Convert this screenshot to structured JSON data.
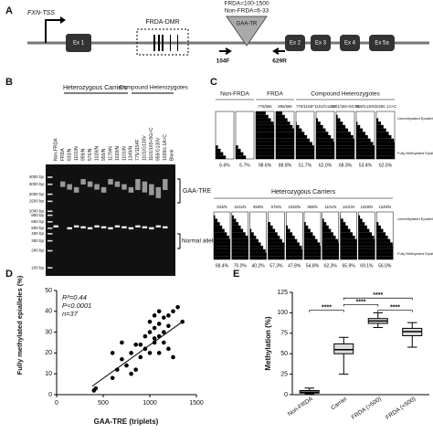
{
  "panel_a": {
    "letter": "A",
    "tss": "FXN-TSS",
    "repeat_frda": "FRDA=100-1500",
    "repeat_non_frda": "Non-FRDA=6-33",
    "repeat": "GAA-TR",
    "dmr": "FRDA-DMR",
    "exons": [
      "Ex 1",
      "Ex 2",
      "Ex 3",
      "Ex 4",
      "Ex 5a"
    ],
    "primers": [
      "104F",
      "629R"
    ]
  },
  "panel_b": {
    "letter": "B",
    "lanes": [
      "Non-FRDA",
      "FRDA",
      "833/N",
      "1101/N",
      "959/N",
      "576/N",
      "1028/N",
      "959/N",
      "1179/N",
      "1028/N",
      "1101/N",
      "1349/N",
      "775/1154F",
      "1101/G130V",
      "1101/165+5G>C",
      "959/G130V",
      "1028/c.1A>C",
      "Blank"
    ],
    "groups": [
      "Heterozygous Carriers",
      "Compound Heterozygotes"
    ],
    "markers": [
      "4000 bp",
      "3000 bp",
      "2000 bp",
      "1500 bp",
      "1000 bp",
      "850 bp",
      "650 bp",
      "500 bp",
      "400 bp",
      "300 bp",
      "200 bp",
      "100 bp"
    ],
    "bands": [
      "GAA-TRE",
      "Normal alleles"
    ]
  },
  "panel_c": {
    "letter": "C",
    "top_groups": [
      "Non-FRDA",
      "FRDA",
      "Compound Heterozygotes"
    ],
    "top_labels": [
      null,
      null,
      "775/566",
      "895/566",
      "775/1154F",
      "1101/G130V",
      "1101/165+5G>C",
      "959/G130V",
      "1028/c.1A>C"
    ],
    "top_percents": [
      "6.6%",
      "6.7%",
      "98.6%",
      "88.8%",
      "51.7%",
      "62.0%",
      "68.3%",
      "53.4%",
      "62.5%"
    ],
    "bottom_group": "Heterozygous Carriers",
    "bottom_labels": [
      "833/N",
      "1101/N",
      "959/N",
      "576/N",
      "1028/N",
      "959/N",
      "1101/N",
      "1101/N",
      "1028/N",
      "1349/N"
    ],
    "bottom_percents": [
      "68.4%",
      "70.0%",
      "40.2%",
      "57.3%",
      "47.8%",
      "54.8%",
      "62.3%",
      "65.9%",
      "69.1%",
      "56.0%"
    ],
    "legend": [
      "Unmethylated Epialleles",
      "Fully Methylated Epialleles"
    ]
  },
  "chart_data": [
    {
      "type": "scatter",
      "letter": "D",
      "x_label": "GAA-TRE (triplets)",
      "y_label": "Fully methylated epialleles (%)",
      "annotations": [
        "R²=0.44",
        "P<0.0001",
        "n=37"
      ],
      "x": [
        400,
        420,
        600,
        650,
        700,
        750,
        800,
        800,
        850,
        850,
        900,
        900,
        950,
        950,
        1000,
        1000,
        1000,
        1050,
        1050,
        1050,
        1050,
        1100,
        1100,
        1100,
        1100,
        1150,
        1150,
        1150,
        1200,
        1200,
        1200,
        1250,
        1250,
        1300,
        1350,
        700,
        600
      ],
      "values": [
        2,
        3,
        8,
        12,
        17,
        14,
        20,
        10,
        12,
        24,
        24,
        18,
        28,
        22,
        30,
        20,
        35,
        25,
        32,
        38,
        27,
        20,
        28,
        34,
        40,
        30,
        25,
        37,
        22,
        33,
        38,
        40,
        18,
        42,
        35,
        25,
        20
      ],
      "fit": {
        "x": [
          380,
          1350
        ],
        "values": [
          4,
          35
        ]
      },
      "color": "#000000",
      "xlim": [
        0,
        1500
      ],
      "xticks": [
        0,
        500,
        1000,
        1500
      ],
      "ylim": [
        0,
        50
      ],
      "yticks": [
        0,
        10,
        20,
        30,
        40,
        50
      ]
    },
    {
      "type": "box",
      "letter": "E",
      "y_label": "Methylation (%)",
      "categories": [
        "Non-FRDA",
        "Carrier",
        "FRDA (>500)",
        "FRDA (<500)"
      ],
      "min": [
        1,
        25,
        82,
        58
      ],
      "q1": [
        2,
        50,
        87,
        72
      ],
      "median": [
        3,
        55,
        90,
        77
      ],
      "q3": [
        5,
        62,
        93,
        81
      ],
      "max": [
        8,
        70,
        100,
        88
      ],
      "color": "#dddddd",
      "annotations": [
        {
          "label": "****",
          "from": 0,
          "to": 1,
          "y": 103
        },
        {
          "label": "****",
          "from": 1,
          "to": 3,
          "y": 118
        },
        {
          "label": "****",
          "from": 1,
          "to": 2,
          "y": 110
        },
        {
          "label": "****",
          "from": 2,
          "to": 3,
          "y": 103
        }
      ],
      "ylim": [
        0,
        125
      ],
      "yticks": [
        0,
        25,
        50,
        75,
        100,
        125
      ]
    }
  ]
}
